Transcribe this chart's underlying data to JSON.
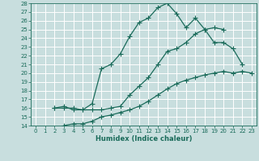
{
  "xlabel": "Humidex (Indice chaleur)",
  "xlim": [
    -0.5,
    23.5
  ],
  "ylim": [
    14,
    28
  ],
  "xticks": [
    0,
    1,
    2,
    3,
    4,
    5,
    6,
    7,
    8,
    9,
    10,
    11,
    12,
    13,
    14,
    15,
    16,
    17,
    18,
    19,
    20,
    21,
    22,
    23
  ],
  "yticks": [
    14,
    15,
    16,
    17,
    18,
    19,
    20,
    21,
    22,
    23,
    24,
    25,
    26,
    27,
    28
  ],
  "line_color": "#1a6b5a",
  "bg_color": "#c8dede",
  "grid_color": "#b0d0d0",
  "line1_x": [
    2,
    3,
    4,
    5,
    6,
    7,
    8,
    9,
    10,
    11,
    12,
    13,
    14,
    15,
    16,
    17,
    18,
    19,
    20
  ],
  "line1_y": [
    16.0,
    16.2,
    15.8,
    15.8,
    16.5,
    20.5,
    21.0,
    22.2,
    24.2,
    25.8,
    26.3,
    27.5,
    28.0,
    26.8,
    25.2,
    26.3,
    25.0,
    25.2,
    25.0
  ],
  "line2_x": [
    2,
    3,
    4,
    5,
    6,
    7,
    8,
    9,
    10,
    11,
    12,
    13,
    14,
    15,
    16,
    17,
    18,
    19,
    20,
    21,
    22
  ],
  "line2_y": [
    16.0,
    16.0,
    16.0,
    15.8,
    15.8,
    15.8,
    16.0,
    16.2,
    17.5,
    18.5,
    19.5,
    21.0,
    22.5,
    22.8,
    23.5,
    24.5,
    25.0,
    23.5,
    23.5,
    22.8,
    21.0
  ],
  "line3_x": [
    3,
    4,
    5,
    6,
    7,
    8,
    9,
    10,
    11,
    12,
    13,
    14,
    15,
    16,
    17,
    18,
    19,
    20,
    21,
    22,
    23
  ],
  "line3_y": [
    14.0,
    14.2,
    14.2,
    14.5,
    15.0,
    15.2,
    15.5,
    15.8,
    16.2,
    16.8,
    17.5,
    18.2,
    18.8,
    19.2,
    19.5,
    19.8,
    20.0,
    20.2,
    20.0,
    20.2,
    20.0
  ],
  "marker": "+",
  "markersize": 4,
  "linewidth": 0.9,
  "tick_fontsize": 5.0,
  "xlabel_fontsize": 6.0
}
